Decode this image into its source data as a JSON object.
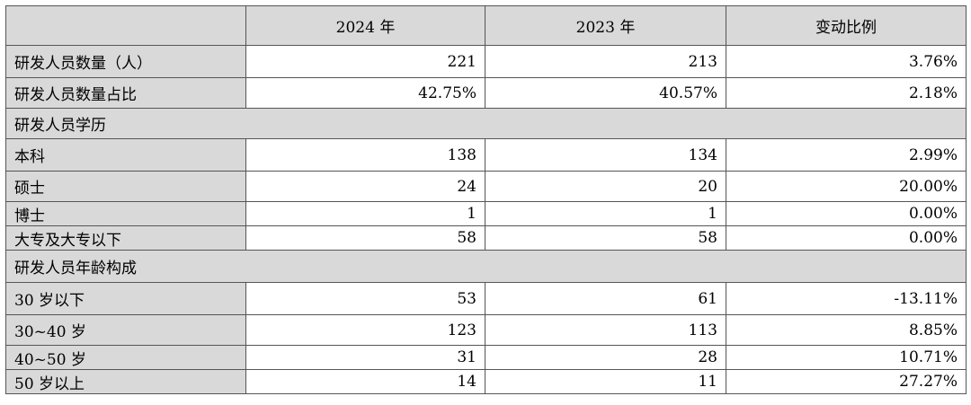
{
  "header": {
    "col0": "",
    "col1": "2024 年",
    "col2": "2023 年",
    "col3": "变动比例"
  },
  "rows": [
    {
      "type": "data",
      "label": "研发人员数量（人）",
      "v2024": "221",
      "v2023": "213",
      "change": "3.76%"
    },
    {
      "type": "data",
      "label": "研发人员数量占比",
      "v2024": "42.75%",
      "v2023": "40.57%",
      "change": "2.18%"
    },
    {
      "type": "section",
      "label": "研发人员学历"
    },
    {
      "type": "data",
      "label": "本科",
      "v2024": "138",
      "v2023": "134",
      "change": "2.99%"
    },
    {
      "type": "data",
      "label": "硕士",
      "v2024": "24",
      "v2023": "20",
      "change": "20.00%"
    },
    {
      "type": "data",
      "label": "博士",
      "v2024": "1",
      "v2023": "1",
      "change": "0.00%"
    },
    {
      "type": "data",
      "label": "大专及大专以下",
      "v2024": "58",
      "v2023": "58",
      "change": "0.00%"
    },
    {
      "type": "section",
      "label": "研发人员年龄构成"
    },
    {
      "type": "data",
      "label": "30 岁以下",
      "v2024": "53",
      "v2023": "61",
      "change": "-13.11%"
    },
    {
      "type": "data",
      "label": "30~40 岁",
      "v2024": "123",
      "v2023": "113",
      "change": "8.85%"
    },
    {
      "type": "data",
      "label": "40~50 岁",
      "v2024": "31",
      "v2023": "28",
      "change": "10.71%"
    },
    {
      "type": "data",
      "label": "50 岁以上",
      "v2024": "14",
      "v2023": "11",
      "change": "27.27%"
    }
  ]
}
